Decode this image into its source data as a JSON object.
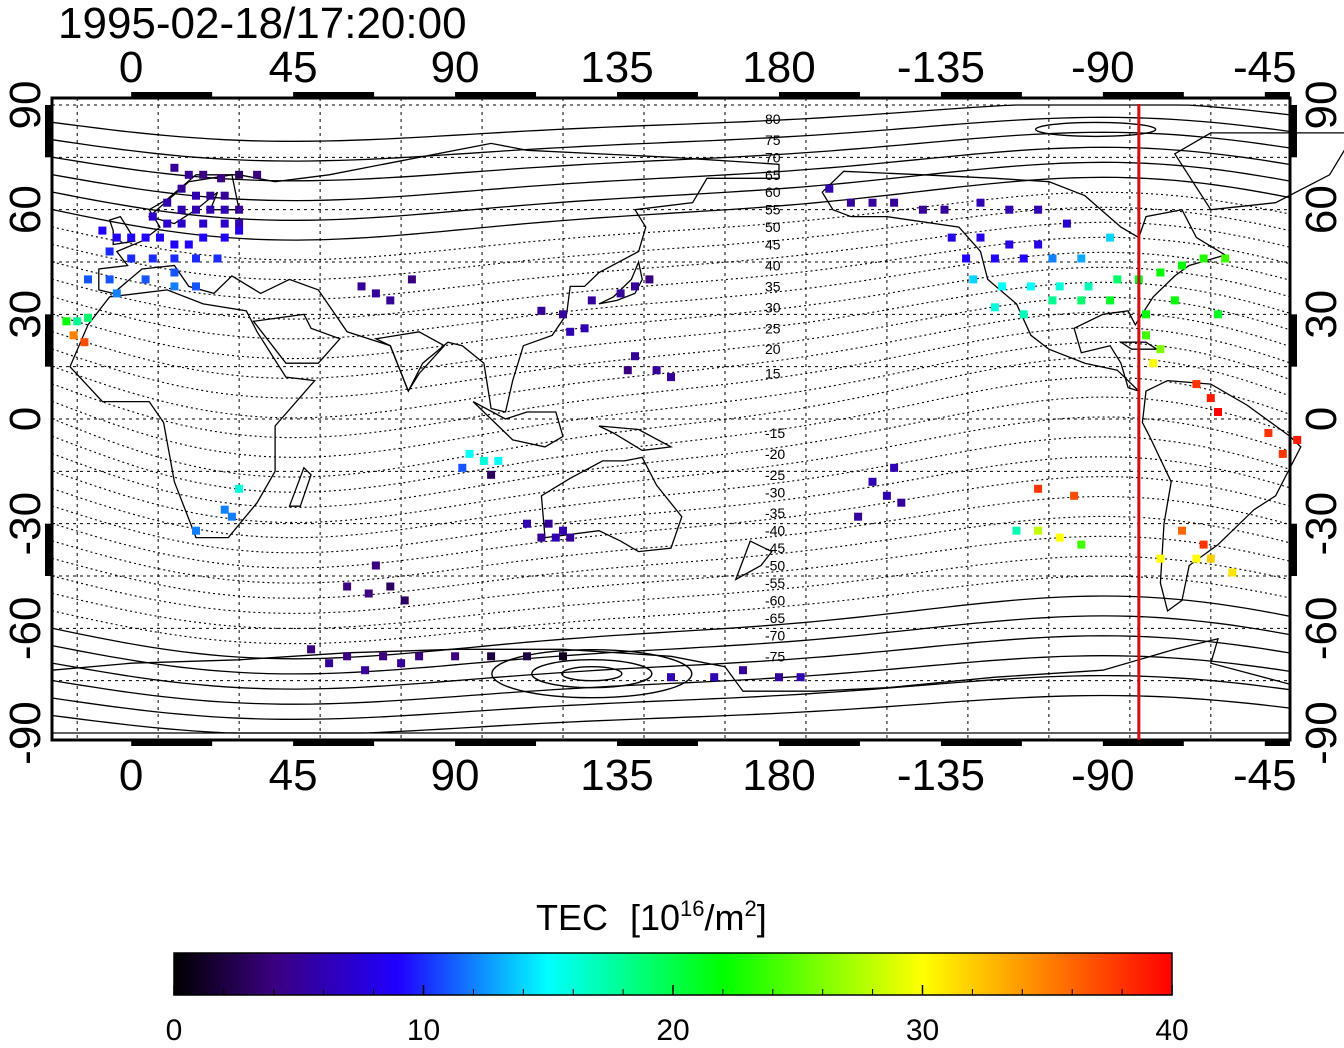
{
  "title": "1995-02-18/17:20:00",
  "map": {
    "lon_ticks_deg": [
      0,
      45,
      90,
      135,
      180,
      225,
      270,
      315
    ],
    "lon_tick_labels": [
      "0",
      "45",
      "90",
      "135",
      "180",
      "-135",
      "-90",
      "-45"
    ],
    "lat_ticks_deg": [
      90,
      60,
      30,
      0,
      -30,
      -60,
      -90
    ],
    "lat_tick_labels": [
      "90",
      "60",
      "30",
      "0",
      "-30",
      "-60",
      "-90"
    ],
    "lon_range": [
      -22,
      322
    ],
    "lat_range": [
      -92,
      92
    ],
    "grid": true,
    "terminator_lon": -80,
    "terminator_color": "#d01010",
    "contour_labels": [
      {
        "text": "80",
        "lon": 180,
        "lat": 86
      },
      {
        "text": "75",
        "lon": 180,
        "lat": 80
      },
      {
        "text": "70",
        "lon": 180,
        "lat": 75
      },
      {
        "text": "65",
        "lon": 180,
        "lat": 70
      },
      {
        "text": "60",
        "lon": 180,
        "lat": 65
      },
      {
        "text": "55",
        "lon": 180,
        "lat": 60
      },
      {
        "text": "50",
        "lon": 180,
        "lat": 55
      },
      {
        "text": "45",
        "lon": 180,
        "lat": 50
      },
      {
        "text": "40",
        "lon": 180,
        "lat": 44
      },
      {
        "text": "35",
        "lon": 180,
        "lat": 38
      },
      {
        "text": "30",
        "lon": 180,
        "lat": 32
      },
      {
        "text": "25",
        "lon": 180,
        "lat": 26
      },
      {
        "text": "20",
        "lon": 180,
        "lat": 20
      },
      {
        "text": "15",
        "lon": 180,
        "lat": 13
      },
      {
        "text": "-15",
        "lon": 180,
        "lat": -4
      },
      {
        "text": "-20",
        "lon": 180,
        "lat": -10
      },
      {
        "text": "-25",
        "lon": 180,
        "lat": -16
      },
      {
        "text": "-30",
        "lon": 180,
        "lat": -21
      },
      {
        "text": "-35",
        "lon": 180,
        "lat": -27
      },
      {
        "text": "-40",
        "lon": 180,
        "lat": -32
      },
      {
        "text": "-45",
        "lon": 180,
        "lat": -37
      },
      {
        "text": "-50",
        "lon": 180,
        "lat": -42
      },
      {
        "text": "-55",
        "lon": 180,
        "lat": -47
      },
      {
        "text": "-60",
        "lon": 180,
        "lat": -52
      },
      {
        "text": "-65",
        "lon": 180,
        "lat": -57
      },
      {
        "text": "-70",
        "lon": 180,
        "lat": -62
      },
      {
        "text": "-75",
        "lon": 180,
        "lat": -68
      }
    ]
  },
  "colorbar": {
    "title": "TEC",
    "unit_base": "[10",
    "unit_exp": "16",
    "unit_mid": "/m",
    "unit_exp2": "2",
    "unit_close": "]",
    "min": 0,
    "max": 40,
    "tick_values": [
      0,
      10,
      20,
      30,
      40
    ],
    "tick_labels": [
      "0",
      "10",
      "20",
      "30",
      "40"
    ],
    "colors": [
      "#000000",
      "#3a0080",
      "#2000ff",
      "#00ffff",
      "#00ff00",
      "#ffff00",
      "#ff0000"
    ]
  },
  "chart_data": {
    "type": "scatter",
    "x_name": "longitude (deg east)",
    "y_name": "latitude (deg)",
    "value_name": "TEC",
    "points": [
      [
        12,
        72,
        5
      ],
      [
        16,
        70,
        5
      ],
      [
        20,
        70,
        4
      ],
      [
        25,
        69,
        4
      ],
      [
        30,
        70,
        3
      ],
      [
        35,
        70,
        4
      ],
      [
        14,
        66,
        5
      ],
      [
        18,
        64,
        6
      ],
      [
        22,
        64,
        5
      ],
      [
        26,
        64,
        5
      ],
      [
        10,
        62,
        6
      ],
      [
        14,
        60,
        6
      ],
      [
        18,
        60,
        6
      ],
      [
        22,
        60,
        6
      ],
      [
        26,
        60,
        6
      ],
      [
        30,
        60,
        5
      ],
      [
        6,
        58,
        7
      ],
      [
        10,
        56,
        7
      ],
      [
        14,
        56,
        7
      ],
      [
        20,
        56,
        7
      ],
      [
        26,
        56,
        7
      ],
      [
        30,
        56,
        6
      ],
      [
        -8,
        54,
        9
      ],
      [
        -4,
        52,
        9
      ],
      [
        0,
        52,
        9
      ],
      [
        4,
        52,
        9
      ],
      [
        8,
        52,
        9
      ],
      [
        12,
        50,
        9
      ],
      [
        16,
        50,
        9
      ],
      [
        20,
        52,
        9
      ],
      [
        26,
        52,
        9
      ],
      [
        30,
        54,
        8
      ],
      [
        -6,
        48,
        10
      ],
      [
        0,
        46,
        10
      ],
      [
        6,
        46,
        10
      ],
      [
        12,
        46,
        10
      ],
      [
        18,
        46,
        10
      ],
      [
        24,
        46,
        10
      ],
      [
        -12,
        40,
        11
      ],
      [
        -6,
        40,
        11
      ],
      [
        4,
        40,
        11
      ],
      [
        12,
        42,
        11
      ],
      [
        -4,
        36,
        12
      ],
      [
        12,
        38,
        12
      ],
      [
        18,
        38,
        11
      ],
      [
        -15,
        28,
        18
      ],
      [
        -18,
        28,
        22
      ],
      [
        -12,
        29,
        19
      ],
      [
        -16,
        24,
        35
      ],
      [
        -13,
        22,
        37
      ],
      [
        64,
        38,
        5
      ],
      [
        68,
        36,
        5
      ],
      [
        72,
        34,
        5
      ],
      [
        78,
        40,
        4
      ],
      [
        114,
        31,
        5
      ],
      [
        120,
        30,
        5
      ],
      [
        128,
        34,
        5
      ],
      [
        136,
        36,
        5
      ],
      [
        140,
        38,
        5
      ],
      [
        144,
        40,
        4
      ],
      [
        122,
        25,
        6
      ],
      [
        126,
        26,
        6
      ],
      [
        140,
        18,
        5
      ],
      [
        146,
        14,
        5
      ],
      [
        150,
        12,
        5
      ],
      [
        138,
        14,
        4
      ],
      [
        94,
        -10,
        15
      ],
      [
        98,
        -12,
        16
      ],
      [
        102,
        -12,
        15
      ],
      [
        92,
        -14,
        11
      ],
      [
        100,
        -16,
        3
      ],
      [
        30,
        -20,
        16
      ],
      [
        26,
        -26,
        12
      ],
      [
        28,
        -28,
        12
      ],
      [
        18,
        -32,
        12
      ],
      [
        110,
        -30,
        6
      ],
      [
        116,
        -30,
        5
      ],
      [
        120,
        -32,
        6
      ],
      [
        114,
        -34,
        5
      ],
      [
        118,
        -34,
        6
      ],
      [
        122,
        -34,
        5
      ],
      [
        68,
        -42,
        4
      ],
      [
        60,
        -48,
        4
      ],
      [
        66,
        -50,
        4
      ],
      [
        72,
        -48,
        3
      ],
      [
        76,
        -52,
        3
      ],
      [
        50,
        -66,
        4
      ],
      [
        60,
        -68,
        4
      ],
      [
        70,
        -68,
        4
      ],
      [
        80,
        -68,
        4
      ],
      [
        90,
        -68,
        4
      ],
      [
        100,
        -68,
        2
      ],
      [
        110,
        -68,
        2
      ],
      [
        120,
        -68,
        1
      ],
      [
        55,
        -70,
        5
      ],
      [
        65,
        -72,
        5
      ],
      [
        75,
        -70,
        5
      ],
      [
        150,
        -74,
        6
      ],
      [
        162,
        -74,
        6
      ],
      [
        170,
        -72,
        5
      ],
      [
        180,
        -74,
        5
      ],
      [
        186,
        -74,
        6
      ],
      [
        194,
        66,
        6
      ],
      [
        200,
        62,
        5
      ],
      [
        206,
        62,
        5
      ],
      [
        212,
        62,
        5
      ],
      [
        220,
        60,
        5
      ],
      [
        226,
        60,
        5
      ],
      [
        236,
        62,
        6
      ],
      [
        244,
        60,
        6
      ],
      [
        252,
        60,
        6
      ],
      [
        260,
        56,
        7
      ],
      [
        228,
        52,
        8
      ],
      [
        236,
        52,
        8
      ],
      [
        244,
        50,
        8
      ],
      [
        252,
        50,
        8
      ],
      [
        232,
        46,
        9
      ],
      [
        240,
        46,
        9
      ],
      [
        248,
        46,
        9
      ],
      [
        256,
        46,
        12
      ],
      [
        264,
        46,
        13
      ],
      [
        272,
        52,
        14
      ],
      [
        234,
        40,
        14
      ],
      [
        242,
        38,
        15
      ],
      [
        250,
        38,
        15
      ],
      [
        258,
        38,
        16
      ],
      [
        266,
        38,
        17
      ],
      [
        274,
        40,
        19
      ],
      [
        280,
        40,
        21
      ],
      [
        286,
        42,
        22
      ],
      [
        292,
        44,
        22
      ],
      [
        298,
        46,
        23
      ],
      [
        304,
        46,
        24
      ],
      [
        240,
        32,
        16
      ],
      [
        248,
        30,
        17
      ],
      [
        256,
        34,
        18
      ],
      [
        264,
        34,
        19
      ],
      [
        272,
        34,
        21
      ],
      [
        282,
        30,
        22
      ],
      [
        290,
        34,
        22
      ],
      [
        302,
        30,
        21
      ],
      [
        282,
        24,
        24
      ],
      [
        286,
        20,
        26
      ],
      [
        284,
        16,
        30
      ],
      [
        296,
        10,
        38
      ],
      [
        300,
        6,
        39
      ],
      [
        302,
        2,
        40
      ],
      [
        316,
        -4,
        38
      ],
      [
        320,
        -10,
        38
      ],
      [
        324,
        -6,
        39
      ],
      [
        206,
        -18,
        6
      ],
      [
        210,
        -22,
        6
      ],
      [
        214,
        -24,
        5
      ],
      [
        212,
        -14,
        6
      ],
      [
        202,
        -28,
        5
      ],
      [
        246,
        -32,
        17
      ],
      [
        252,
        -32,
        28
      ],
      [
        258,
        -34,
        30
      ],
      [
        264,
        -36,
        24
      ],
      [
        252,
        -20,
        38
      ],
      [
        262,
        -22,
        37
      ],
      [
        292,
        -32,
        36
      ],
      [
        296,
        -40,
        30
      ],
      [
        300,
        -40,
        32
      ],
      [
        306,
        -44,
        31
      ],
      [
        286,
        -40,
        30
      ],
      [
        298,
        -36,
        38
      ]
    ]
  }
}
